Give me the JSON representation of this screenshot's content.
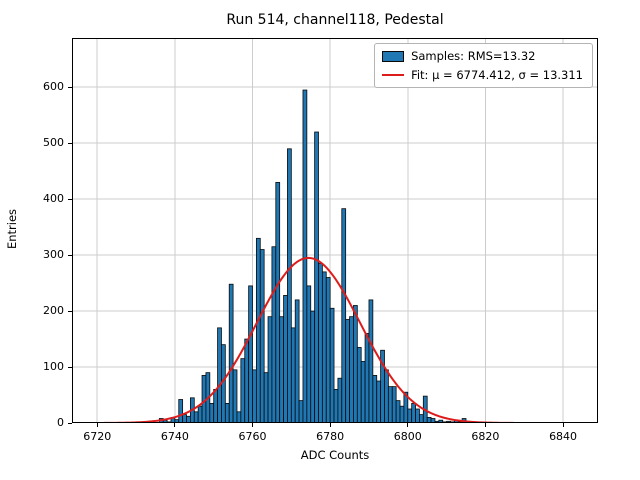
{
  "chart_data": {
    "type": "bar",
    "title": "Run 514, channel118, Pedestal",
    "xlabel": "ADC Counts",
    "ylabel": "Entries",
    "xlim": [
      6713.5,
      6849
    ],
    "ylim": [
      0,
      688
    ],
    "xticks": [
      6720,
      6740,
      6760,
      6780,
      6800,
      6820,
      6840
    ],
    "yticks": [
      0,
      100,
      200,
      300,
      400,
      500,
      600
    ],
    "grid": true,
    "legend_position": "upper right",
    "bin_start": 6736,
    "bin_width": 1,
    "values": [
      8,
      5,
      2,
      10,
      6,
      42,
      15,
      12,
      45,
      20,
      30,
      85,
      90,
      35,
      60,
      170,
      140,
      35,
      248,
      95,
      20,
      115,
      150,
      245,
      95,
      330,
      310,
      90,
      190,
      315,
      430,
      190,
      228,
      490,
      170,
      220,
      40,
      595,
      245,
      200,
      520,
      285,
      270,
      260,
      205,
      60,
      80,
      383,
      185,
      190,
      210,
      135,
      110,
      160,
      220,
      85,
      75,
      130,
      95,
      65,
      65,
      40,
      30,
      55,
      25,
      35,
      25,
      15,
      48,
      10,
      8,
      3,
      5,
      2,
      3,
      2,
      5,
      2,
      8,
      3
    ],
    "fit": {
      "mu": 6774.412,
      "sigma": 13.311,
      "amplitude": 295,
      "draw_range": [
        6718,
        6829
      ]
    },
    "colors": {
      "bar_fill": "#1f77b4",
      "bar_edge": "#0a0a0a",
      "fit_line": "#dd1c1c",
      "grid": "#cccccc",
      "axes_edge": "#000000"
    }
  },
  "legend": {
    "samples": "Samples: RMS=13.32",
    "fit": "Fit: μ = 6774.412, σ = 13.311"
  }
}
